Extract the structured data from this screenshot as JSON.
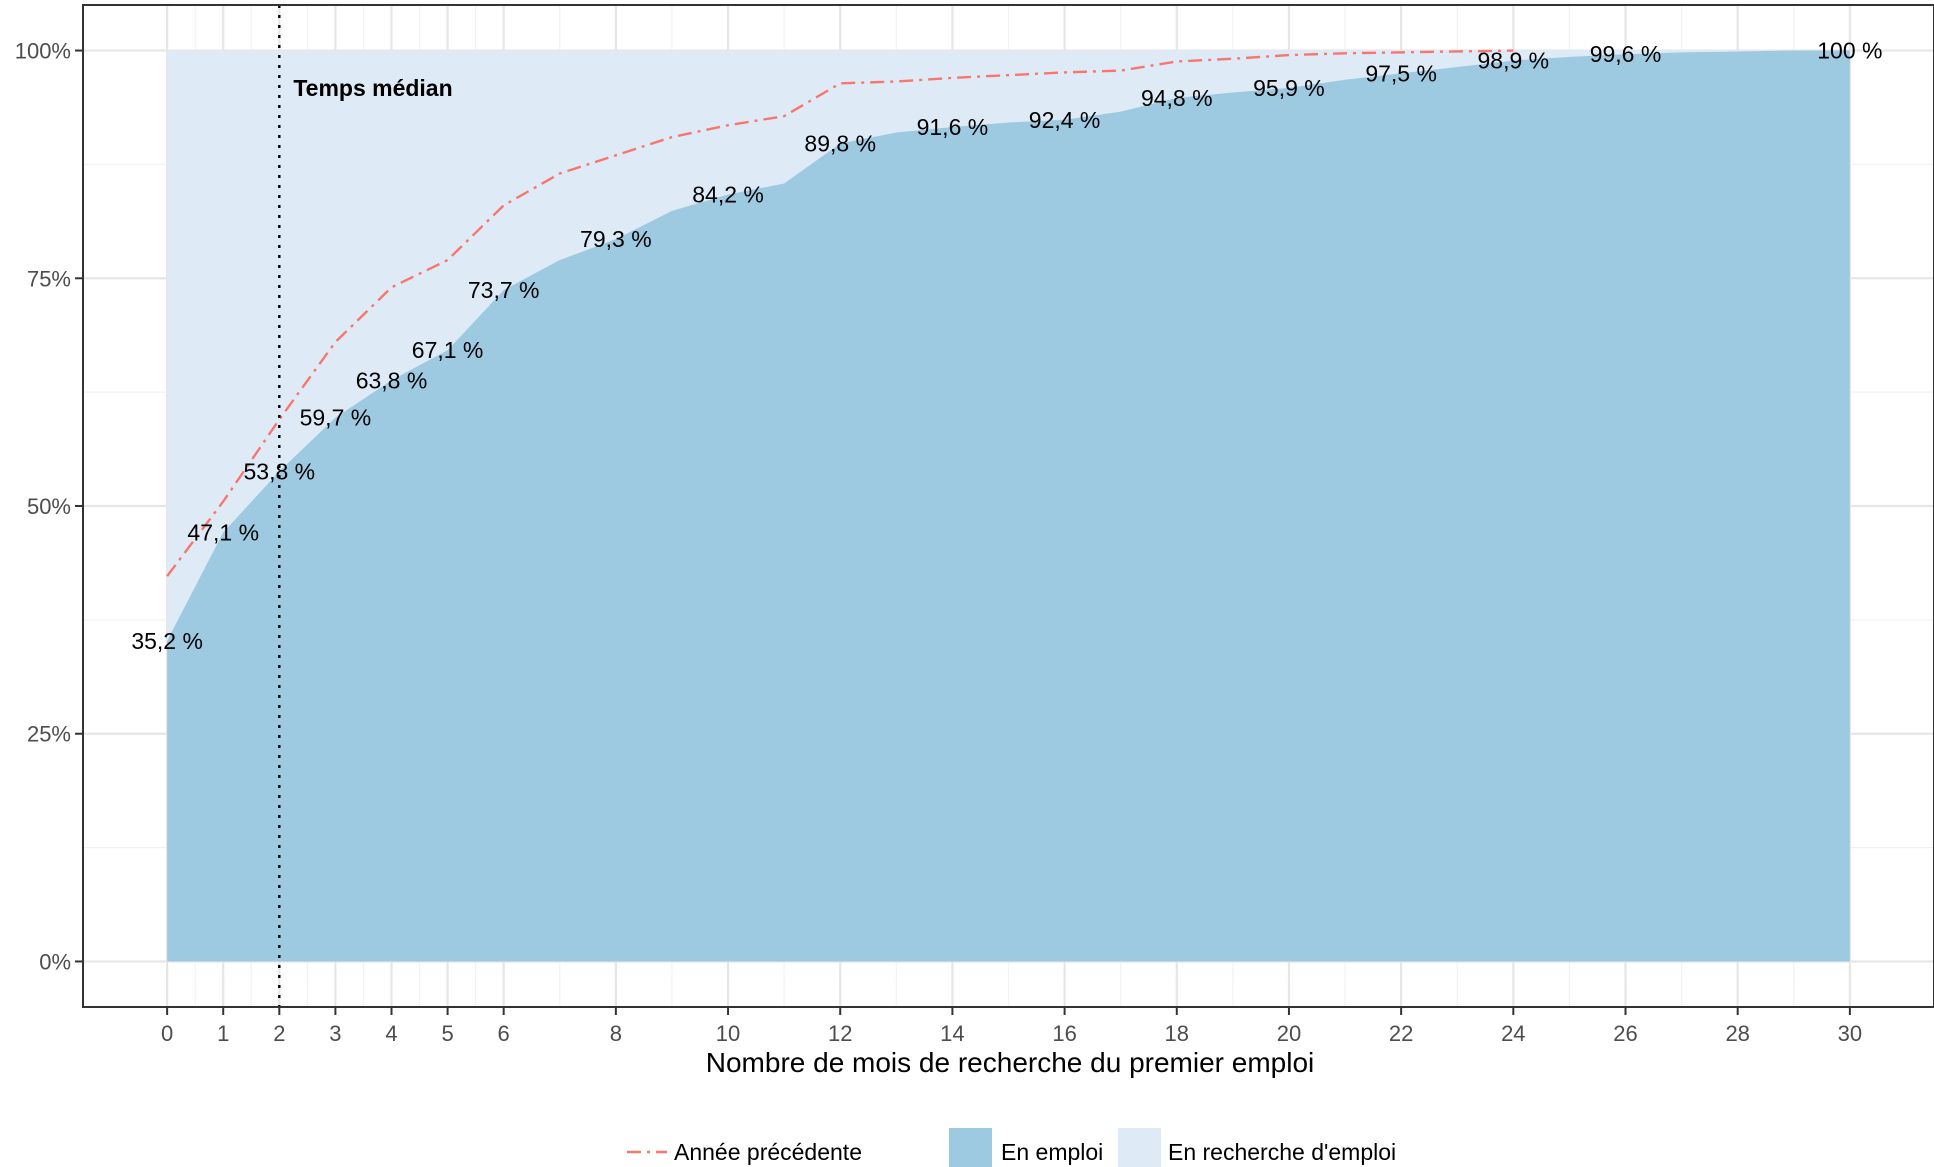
{
  "chart_data": {
    "type": "area",
    "title": "",
    "xlabel": "Nombre de mois de recherche du premier emploi",
    "ylabel": "",
    "xlim": [
      -1.5,
      31.5
    ],
    "ylim": [
      -5,
      105
    ],
    "x_ticks": [
      0,
      1,
      2,
      3,
      4,
      5,
      6,
      8,
      10,
      12,
      14,
      16,
      18,
      20,
      22,
      24,
      26,
      28,
      30
    ],
    "x_tick_labels": [
      "0",
      "1",
      "2",
      "3",
      "4",
      "5",
      "6",
      "8",
      "10",
      "12",
      "14",
      "16",
      "18",
      "20",
      "22",
      "24",
      "26",
      "28",
      "30"
    ],
    "y_ticks": [
      0,
      25,
      50,
      75,
      100
    ],
    "y_tick_labels": [
      "0%",
      "25%",
      "50%",
      "75%",
      "100%"
    ],
    "grid": true,
    "legend_position": "bottom",
    "series": [
      {
        "name": "En emploi",
        "kind": "area",
        "color": "#9ecae1",
        "x": [
          0,
          1,
          2,
          3,
          4,
          5,
          6,
          7,
          8,
          9,
          10,
          11,
          12,
          13,
          14,
          15,
          16,
          17,
          18,
          19,
          20,
          21,
          22,
          23,
          24,
          25,
          26,
          27,
          28,
          29,
          30
        ],
        "values": [
          35.2,
          47.1,
          53.8,
          59.7,
          63.8,
          67.1,
          73.7,
          77.0,
          79.3,
          82.4,
          84.2,
          85.4,
          89.8,
          91.0,
          91.6,
          92.1,
          92.4,
          93.3,
          94.8,
          95.4,
          95.9,
          96.8,
          97.5,
          98.2,
          98.9,
          99.3,
          99.6,
          99.8,
          99.9,
          100,
          100
        ]
      },
      {
        "name": "En recherche d'emploi",
        "kind": "area-background",
        "color": "#deebf7"
      },
      {
        "name": "Année précédente",
        "kind": "line",
        "color": "#f8766d",
        "dash": "dashdot",
        "x": [
          0,
          1,
          2,
          3,
          4,
          5,
          6,
          7,
          8,
          9,
          10,
          11,
          12,
          13,
          14,
          15,
          16,
          17,
          18,
          19,
          20,
          21,
          22,
          23,
          24
        ],
        "values": [
          42.3,
          50.5,
          59.5,
          68.0,
          74.0,
          77.0,
          83.0,
          86.5,
          88.5,
          90.5,
          91.8,
          92.8,
          96.4,
          96.6,
          97.0,
          97.3,
          97.6,
          97.8,
          98.8,
          99.1,
          99.5,
          99.7,
          99.8,
          99.9,
          100
        ]
      }
    ],
    "labels": [
      {
        "x": 0,
        "y": 35.2,
        "text": "35,2 %"
      },
      {
        "x": 1,
        "y": 47.1,
        "text": "47,1 %"
      },
      {
        "x": 2,
        "y": 53.8,
        "text": "53,8 %"
      },
      {
        "x": 3,
        "y": 59.7,
        "text": "59,7 %"
      },
      {
        "x": 4,
        "y": 63.8,
        "text": "63,8 %"
      },
      {
        "x": 5,
        "y": 67.1,
        "text": "67,1 %"
      },
      {
        "x": 6,
        "y": 73.7,
        "text": "73,7 %"
      },
      {
        "x": 8,
        "y": 79.3,
        "text": "79,3 %"
      },
      {
        "x": 10,
        "y": 84.2,
        "text": "84,2 %"
      },
      {
        "x": 12,
        "y": 89.8,
        "text": "89,8 %"
      },
      {
        "x": 14,
        "y": 91.6,
        "text": "91,6 %"
      },
      {
        "x": 16,
        "y": 92.4,
        "text": "92,4 %"
      },
      {
        "x": 18,
        "y": 94.8,
        "text": "94,8 %"
      },
      {
        "x": 20,
        "y": 95.9,
        "text": "95,9 %"
      },
      {
        "x": 22,
        "y": 97.5,
        "text": "97,5 %"
      },
      {
        "x": 24,
        "y": 98.9,
        "text": "98,9 %"
      },
      {
        "x": 26,
        "y": 99.6,
        "text": "99,6 %"
      },
      {
        "x": 30,
        "y": 100,
        "text": "100 %"
      }
    ],
    "median": {
      "x": 2,
      "label": "Temps médian"
    },
    "legend": [
      {
        "name": "Année précédente",
        "symbol": "line"
      },
      {
        "name": "En emploi",
        "symbol": "box"
      },
      {
        "name": "En recherche d'emploi",
        "symbol": "box"
      }
    ]
  }
}
